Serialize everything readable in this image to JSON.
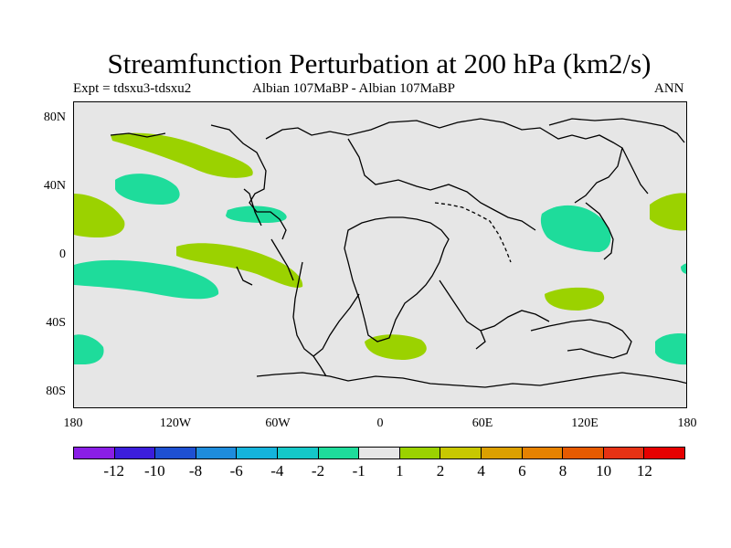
{
  "title": "Streamfunction Perturbation at 200 hPa (km2/s)",
  "subtitle_left": "Expt = tdsxu3-tdsxu2",
  "subtitle_center": "Albian   107MaBP - Albian   107MaBP",
  "subtitle_right": "ANN",
  "lat_labels": [
    "80N",
    "40N",
    "0",
    "40S",
    "80S"
  ],
  "lon_labels": [
    "180",
    "120W",
    "60W",
    "0",
    "60E",
    "120E",
    "180"
  ],
  "colorbar": {
    "colors": [
      "#8a1ee6",
      "#3c1edc",
      "#1e50d2",
      "#1e8cdc",
      "#14b4dc",
      "#14c8c8",
      "#1edc9b",
      "#e6e6e6",
      "#9bd200",
      "#c8c800",
      "#dca000",
      "#e68200",
      "#e65a00",
      "#e63214",
      "#e60000"
    ],
    "labels": [
      "-12",
      "-10",
      "-8",
      "-6",
      "-4",
      "-2",
      "-1",
      "1",
      "2",
      "4",
      "6",
      "8",
      "10",
      "12"
    ]
  },
  "colors": {
    "negative": "#1edc9b",
    "positive": "#9bd200",
    "background": "#e6e6e6"
  }
}
